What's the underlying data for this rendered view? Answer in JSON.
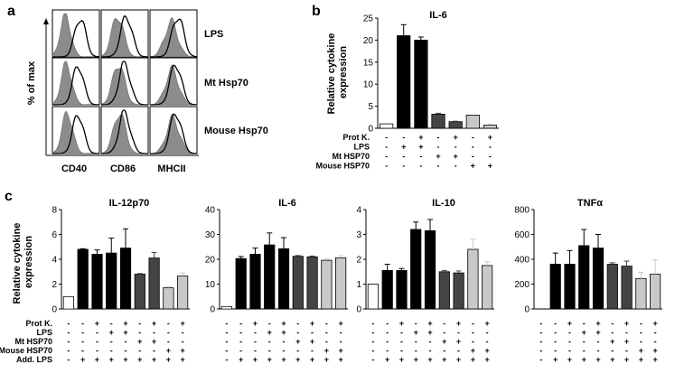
{
  "panels": {
    "a": {
      "label": "a",
      "ylabel": "% of max",
      "rows": [
        "LPS",
        "Mt Hsp70",
        "Mouse Hsp70"
      ],
      "cols": [
        "CD40",
        "CD86",
        "MHCII"
      ]
    },
    "b": {
      "label": "b"
    },
    "c": {
      "label": "c"
    }
  },
  "colors": {
    "white": "#ffffff",
    "black": "#000000",
    "dark": "#444444",
    "mid": "#7a7a7a",
    "light": "#c8c8c8",
    "hist_fill": "#8c8c8c"
  },
  "chart_data": [
    {
      "id": "b-il6",
      "type": "bar",
      "title": "IL-6",
      "ylabel": "Relative cytokine expression",
      "yticks": [
        "0",
        "5",
        "10",
        "15",
        "20",
        "25"
      ],
      "ylim": [
        0,
        25
      ],
      "values": [
        1,
        21,
        20,
        3.2,
        1.5,
        3,
        0.7
      ],
      "errors": [
        0,
        2.5,
        0.7,
        0.2,
        0.1,
        0,
        0.2
      ],
      "bar_colors": [
        "white",
        "black",
        "black",
        "dark",
        "dark",
        "light",
        "light"
      ],
      "condition_labels": [
        "Prot K.",
        "LPS",
        "Mt HSP70",
        "Mouse HSP70"
      ],
      "condition_signs": [
        [
          "-",
          "-",
          "+",
          "-",
          "+",
          "-",
          "+"
        ],
        [
          "-",
          "+",
          "+",
          "-",
          "-",
          "-",
          "-"
        ],
        [
          "-",
          "-",
          "-",
          "+",
          "+",
          "-",
          "-"
        ],
        [
          "-",
          "-",
          "-",
          "-",
          "-",
          "+",
          "+"
        ]
      ]
    },
    {
      "id": "c-il12p70",
      "type": "bar",
      "title": "IL-12p70",
      "ylabel": "Relative cytokine expression",
      "yticks": [
        "0",
        "2",
        "4",
        "6",
        "8"
      ],
      "ylim": [
        0,
        8
      ],
      "values": [
        1,
        4.8,
        4.4,
        4.5,
        4.9,
        2.8,
        4.1,
        1.7,
        2.65
      ],
      "errors": [
        0,
        0.05,
        0.35,
        1.2,
        1.55,
        0.05,
        0.45,
        0.1,
        0.25
      ],
      "bar_colors": [
        "white",
        "black",
        "black",
        "black",
        "black",
        "dark",
        "dark",
        "light",
        "light"
      ]
    },
    {
      "id": "c-il6",
      "type": "bar",
      "title": "IL-6",
      "yticks": [
        "0",
        "10",
        "20",
        "30",
        "40"
      ],
      "ylim": [
        0,
        40
      ],
      "values": [
        1,
        20.3,
        22,
        25.8,
        24.2,
        21.2,
        21,
        19.6,
        20.6
      ],
      "errors": [
        0,
        0.8,
        2.5,
        4.8,
        4.5,
        0.3,
        0.3,
        0.5,
        0.8
      ],
      "bar_colors": [
        "white",
        "black",
        "black",
        "black",
        "black",
        "dark",
        "dark",
        "light",
        "light"
      ]
    },
    {
      "id": "c-il10",
      "type": "bar",
      "title": "IL-10",
      "yticks": [
        "0",
        "1",
        "2",
        "3",
        "4"
      ],
      "ylim": [
        0,
        4
      ],
      "values": [
        1,
        1.55,
        1.55,
        3.2,
        3.15,
        1.5,
        1.45,
        2.4,
        1.75
      ],
      "errors": [
        0,
        0.25,
        0.08,
        0.3,
        0.45,
        0.05,
        0.08,
        0.4,
        0.15
      ],
      "bar_colors": [
        "white",
        "black",
        "black",
        "black",
        "black",
        "dark",
        "dark",
        "light",
        "light"
      ]
    },
    {
      "id": "c-tnfa",
      "type": "bar",
      "title": "TNFα",
      "yticks": [
        "0",
        "200",
        "400",
        "600",
        "800"
      ],
      "ylim": [
        0,
        800
      ],
      "values": [
        0,
        360,
        360,
        510,
        490,
        360,
        345,
        245,
        280
      ],
      "errors": [
        0,
        90,
        110,
        130,
        110,
        12,
        40,
        50,
        115
      ],
      "bar_colors": [
        "white",
        "black",
        "black",
        "black",
        "black",
        "dark",
        "dark",
        "light",
        "light"
      ]
    }
  ],
  "c_conditions": {
    "labels": [
      "Prot K.",
      "LPS",
      "Mt HSP70",
      "Mouse HSP70",
      "Add. LPS"
    ],
    "signs": [
      [
        "-",
        "-",
        "+",
        "-",
        "+",
        "-",
        "+",
        "-",
        "+"
      ],
      [
        "-",
        "-",
        "-",
        "+",
        "+",
        "-",
        "-",
        "-",
        "-"
      ],
      [
        "-",
        "-",
        "-",
        "-",
        "-",
        "+",
        "+",
        "-",
        "-"
      ],
      [
        "-",
        "-",
        "-",
        "-",
        "-",
        "-",
        "-",
        "+",
        "+"
      ],
      [
        "-",
        "+",
        "+",
        "+",
        "+",
        "+",
        "+",
        "+",
        "+"
      ]
    ]
  }
}
